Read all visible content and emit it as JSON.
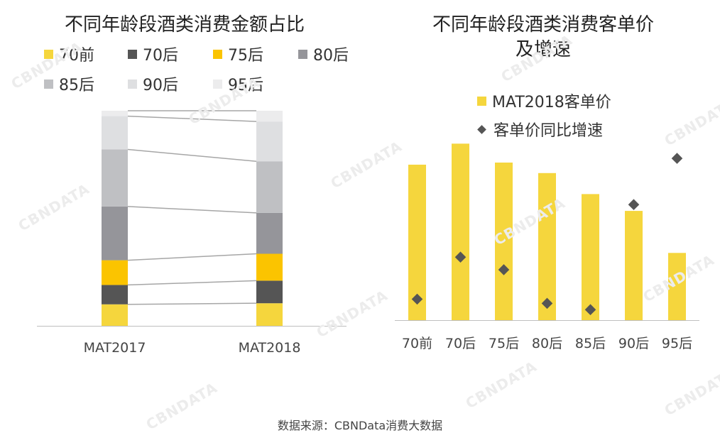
{
  "left_title": "不同年龄段酒类消费金额占比",
  "right_title": [
    "不同年龄段酒类消费客单价",
    "及增速"
  ],
  "source": "数据来源：CBNData消费大数据",
  "watermark": "CBNDATA",
  "colors": {
    "70前": "#f5d63d",
    "70后": "#555555",
    "75后": "#fbc400",
    "80后": "#95959a",
    "85后": "#bfc0c3",
    "90后": "#dedfe1",
    "95后": "#ececed",
    "bar": "#f5d63d",
    "diamond": "#555555"
  },
  "chart_data": [
    {
      "type": "bar",
      "subtype": "stacked-100",
      "title": "不同年龄段酒类消费金额占比",
      "categories": [
        "MAT2017",
        "MAT2018"
      ],
      "legend": [
        "70前",
        "70后",
        "75后",
        "80后",
        "85后",
        "90后",
        "95后"
      ],
      "series": [
        {
          "name": "70前",
          "values": [
            10,
            10.5
          ]
        },
        {
          "name": "70后",
          "values": [
            9,
            10.5
          ]
        },
        {
          "name": "75后",
          "values": [
            11.5,
            12.5
          ]
        },
        {
          "name": "80后",
          "values": [
            25,
            19
          ]
        },
        {
          "name": "85后",
          "values": [
            26.5,
            24
          ]
        },
        {
          "name": "90后",
          "values": [
            15.5,
            18.5
          ]
        },
        {
          "name": "95后",
          "values": [
            2.5,
            5
          ]
        }
      ],
      "ylim": [
        0,
        100
      ]
    },
    {
      "type": "bar",
      "title": "不同年龄段酒类消费客单价及增速",
      "categories": [
        "70前",
        "70后",
        "75后",
        "80后",
        "85后",
        "90后",
        "95后"
      ],
      "series": [
        {
          "name": "MAT2018客单价",
          "type": "bar",
          "values": [
            74,
            84,
            75,
            70,
            60,
            52,
            32
          ]
        },
        {
          "name": "客单价同比增速",
          "type": "scatter",
          "values": [
            10,
            30,
            24,
            8,
            5,
            55,
            77
          ]
        }
      ],
      "ylim": [
        0,
        100
      ]
    }
  ]
}
